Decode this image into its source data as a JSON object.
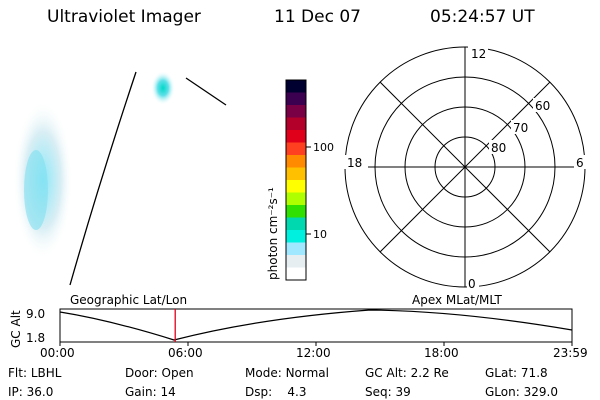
{
  "header": {
    "title": "Ultraviolet Imager",
    "date": "11 Dec 07",
    "time": "05:24:57 UT"
  },
  "colorbar": {
    "unit_label": "photon cm⁻²s⁻¹",
    "ticks": [
      {
        "label": "100",
        "value": 100
      },
      {
        "label": "10",
        "value": 10
      }
    ],
    "colors": [
      "#000030",
      "#3b0050",
      "#7a0046",
      "#b3002a",
      "#e0001a",
      "#ff4020",
      "#ff8a00",
      "#ffc000",
      "#ffff00",
      "#b0ff00",
      "#30e000",
      "#00d8b0",
      "#00f0e0",
      "#a0e8ff",
      "#e6eef2",
      "#ffffff"
    ]
  },
  "image_panels": {
    "left_label": "Geographic Lat/Lon",
    "right_label": "Apex MLat/MLT"
  },
  "polar_plot": {
    "mlt_labels": [
      "12",
      "18",
      "6",
      "0"
    ],
    "lat_labels": [
      "60",
      "70",
      "80"
    ]
  },
  "altitude_plot": {
    "ylabel": "GC Alt",
    "y_max_label": "9.0",
    "y_min_label": "1.8",
    "x_ticks": [
      "00:00",
      "06:00",
      "12:00",
      "18:00",
      "23:59"
    ],
    "current_time_marker_hours": 5.4
  },
  "status": {
    "flt": {
      "label": "Flt:",
      "value": "LBHL"
    },
    "door": {
      "label": "Door:",
      "value": "Open"
    },
    "mode": {
      "label": "Mode:",
      "value": "Normal"
    },
    "gc_alt": {
      "label": "GC Alt:",
      "value": "2.2 Re"
    },
    "glat": {
      "label": "GLat:",
      "value": "71.8"
    },
    "ip": {
      "label": "IP:",
      "value": "36.0"
    },
    "gain": {
      "label": "Gain:",
      "value": "14"
    },
    "dsp": {
      "label": "Dsp:",
      "value": "4.3"
    },
    "seq": {
      "label": "Seq:",
      "value": "39"
    },
    "glon": {
      "label": "GLon:",
      "value": "329.0"
    }
  }
}
